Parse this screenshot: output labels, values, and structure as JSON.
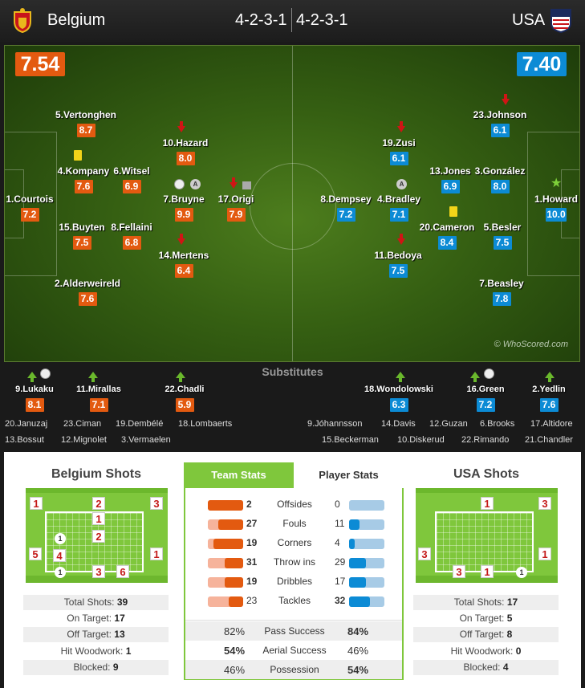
{
  "header": {
    "home_team": "Belgium",
    "away_team": "USA",
    "home_formation": "4-2-3-1",
    "away_formation": "4-2-3-1"
  },
  "ratings": {
    "home": "7.54",
    "away": "7.40"
  },
  "home_players": [
    {
      "name": "1.Courtois",
      "rating": "7.2"
    },
    {
      "name": "2.Alderweireld",
      "rating": "7.6"
    },
    {
      "name": "15.Buyten",
      "rating": "7.5"
    },
    {
      "name": "4.Kompany",
      "rating": "7.6"
    },
    {
      "name": "5.Vertonghen",
      "rating": "8.7"
    },
    {
      "name": "8.Fellaini",
      "rating": "6.8"
    },
    {
      "name": "6.Witsel",
      "rating": "6.9"
    },
    {
      "name": "14.Mertens",
      "rating": "6.4"
    },
    {
      "name": "7.Bruyne",
      "rating": "9.9"
    },
    {
      "name": "10.Hazard",
      "rating": "8.0"
    },
    {
      "name": "17.Origi",
      "rating": "7.9"
    }
  ],
  "away_players": [
    {
      "name": "1.Howard",
      "rating": "10.0"
    },
    {
      "name": "23.Johnson",
      "rating": "6.1"
    },
    {
      "name": "3.González",
      "rating": "8.0"
    },
    {
      "name": "5.Besler",
      "rating": "7.5"
    },
    {
      "name": "7.Beasley",
      "rating": "7.8"
    },
    {
      "name": "13.Jones",
      "rating": "6.9"
    },
    {
      "name": "20.Cameron",
      "rating": "8.4"
    },
    {
      "name": "19.Zusi",
      "rating": "6.1"
    },
    {
      "name": "4.Bradley",
      "rating": "7.1"
    },
    {
      "name": "11.Bedoya",
      "rating": "7.5"
    },
    {
      "name": "8.Dempsey",
      "rating": "7.2"
    }
  ],
  "icons": {
    "captain_letter": "A"
  },
  "watermark": "© WhoScored.com",
  "substitutes": {
    "title": "Substitutes",
    "home_used": [
      {
        "name": "9.Lukaku",
        "rating": "8.1"
      },
      {
        "name": "11.Mirallas",
        "rating": "7.1"
      },
      {
        "name": "22.Chadli",
        "rating": "5.9"
      }
    ],
    "away_used": [
      {
        "name": "18.Wondolowski",
        "rating": "6.3"
      },
      {
        "name": "16.Green",
        "rating": "7.2"
      },
      {
        "name": "2.Yedlin",
        "rating": "7.6"
      }
    ],
    "home_bench": [
      "20.Januzaj",
      "23.Ciman",
      "19.Dembélé",
      "18.Lombaerts",
      "13.Bossut",
      "12.Mignolet",
      "3.Vermaelen"
    ],
    "away_bench": [
      "9.Jóhannsson",
      "14.Davis",
      "12.Guzan",
      "6.Brooks",
      "17.Altidore",
      "15.Beckerman",
      "10.Diskerud",
      "22.Rimando",
      "21.Chandler"
    ]
  },
  "home_shots": {
    "title": "Belgium Shots",
    "boxes": [
      "1",
      "2",
      "1",
      "3",
      "2",
      "5",
      "4",
      "1",
      "3",
      "6"
    ],
    "goals": [
      "1",
      "1"
    ],
    "stats": [
      {
        "label": "Total Shots:",
        "value": "39"
      },
      {
        "label": "On Target:",
        "value": "17"
      },
      {
        "label": "Off Target:",
        "value": "13"
      },
      {
        "label": "Hit Woodwork:",
        "value": "1"
      },
      {
        "label": "Blocked:",
        "value": "9"
      }
    ]
  },
  "away_shots": {
    "title": "USA Shots",
    "boxes": [
      "1",
      "3",
      "3",
      "1",
      "3",
      "1"
    ],
    "goals": [
      "1"
    ],
    "stats": [
      {
        "label": "Total Shots:",
        "value": "17"
      },
      {
        "label": "On Target:",
        "value": "5"
      },
      {
        "label": "Off Target:",
        "value": "8"
      },
      {
        "label": "Hit Woodwork:",
        "value": "0"
      },
      {
        "label": "Blocked:",
        "value": "4"
      }
    ]
  },
  "tabs": {
    "team": "Team Stats",
    "player": "Player Stats"
  },
  "team_stats": [
    {
      "label": "Offsides",
      "home": "2",
      "away": "0",
      "home_frac": 1.0,
      "away_frac": 0.0
    },
    {
      "label": "Fouls",
      "home": "27",
      "away": "11",
      "home_frac": 0.71,
      "away_frac": 0.29
    },
    {
      "label": "Corners",
      "home": "19",
      "away": "4",
      "home_frac": 0.83,
      "away_frac": 0.17
    },
    {
      "label": "Throw ins",
      "home": "31",
      "away": "29",
      "home_frac": 0.52,
      "away_frac": 0.48
    },
    {
      "label": "Dribbles",
      "home": "19",
      "away": "17",
      "home_frac": 0.53,
      "away_frac": 0.47
    },
    {
      "label": "Tackles",
      "home": "23",
      "away": "32",
      "home_frac": 0.42,
      "away_frac": 0.58
    }
  ],
  "pct_stats": [
    {
      "label": "Pass Success",
      "home": "82%",
      "away": "84%"
    },
    {
      "label": "Aerial Success",
      "home": "54%",
      "away": "46%"
    },
    {
      "label": "Possession",
      "home": "46%",
      "away": "54%"
    }
  ],
  "colors": {
    "home": "#e35a10",
    "away": "#0c8bd5",
    "accent": "#7fc73c"
  }
}
